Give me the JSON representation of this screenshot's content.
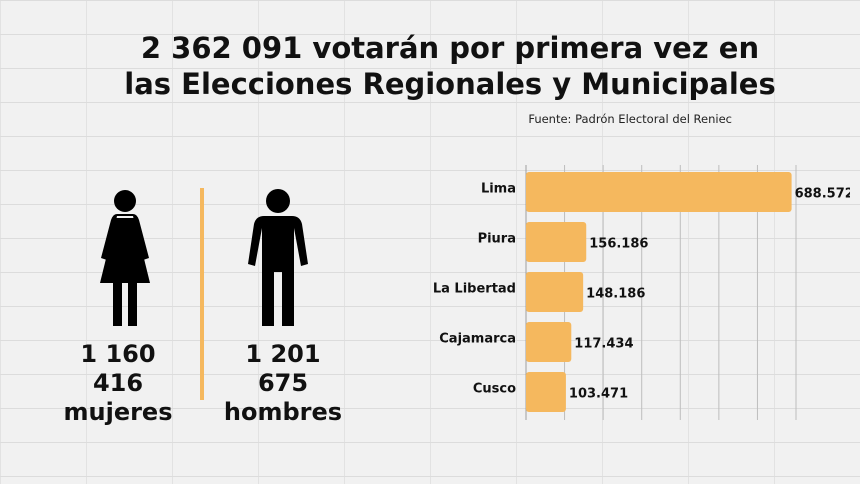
{
  "title": {
    "line1": "2 362 091 votarán por primera vez en",
    "line2": "las Elecciones Regionales y Municipales"
  },
  "source": "Fuente: Padrón Electoral del Reniec",
  "gender": {
    "women": {
      "count": "1 160 416",
      "label": "mujeres",
      "icon": "woman-icon"
    },
    "men": {
      "count": "1 201 675",
      "label": "hombres",
      "icon": "man-icon"
    }
  },
  "colors": {
    "accent": "#f5b85e",
    "text": "#111111"
  },
  "chart_data": {
    "type": "bar",
    "orientation": "horizontal",
    "categories": [
      "Lima",
      "Piura",
      "La Libertad",
      "Cajamarca",
      "Cusco"
    ],
    "values": [
      688572,
      156186,
      148186,
      117434,
      103471
    ],
    "value_labels": [
      "688.572",
      "156.186",
      "148.186",
      "117.434",
      "103.471"
    ],
    "xlim": [
      0,
      700000
    ],
    "grid": true
  }
}
